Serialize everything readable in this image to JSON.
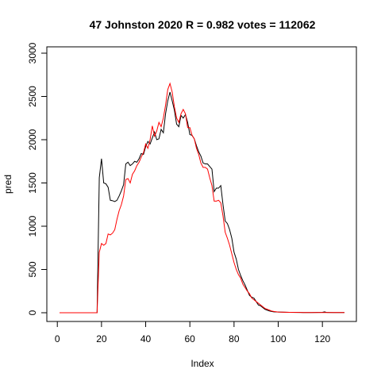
{
  "chart_data": {
    "type": "line",
    "title": "47 Johnston 2020 R = 0.982 votes = 112062",
    "xlabel": "Index",
    "ylabel": "pred",
    "xlim": [
      1,
      130
    ],
    "ylim": [
      0,
      3000
    ],
    "xticks": [
      0,
      20,
      40,
      60,
      80,
      100,
      120
    ],
    "yticks": [
      0,
      500,
      1000,
      1500,
      2000,
      2500,
      3000
    ],
    "grid": false,
    "legend": "none",
    "series": [
      {
        "color": "#000000",
        "points": [
          [
            1,
            0
          ],
          [
            18,
            0
          ],
          [
            19,
            1560
          ],
          [
            20,
            1780
          ],
          [
            21,
            1500
          ],
          [
            22,
            1490
          ],
          [
            23,
            1450
          ],
          [
            24,
            1300
          ],
          [
            25,
            1295
          ],
          [
            26,
            1285
          ],
          [
            27,
            1300
          ],
          [
            28,
            1350
          ],
          [
            29,
            1410
          ],
          [
            30,
            1480
          ],
          [
            31,
            1720
          ],
          [
            32,
            1740
          ],
          [
            33,
            1700
          ],
          [
            34,
            1720
          ],
          [
            35,
            1750
          ],
          [
            36,
            1740
          ],
          [
            37,
            1780
          ],
          [
            38,
            1840
          ],
          [
            39,
            1830
          ],
          [
            40,
            1920
          ],
          [
            41,
            1980
          ],
          [
            42,
            1950
          ],
          [
            43,
            2020
          ],
          [
            44,
            2090
          ],
          [
            45,
            2000
          ],
          [
            46,
            2010
          ],
          [
            47,
            2120
          ],
          [
            48,
            2080
          ],
          [
            49,
            2300
          ],
          [
            50,
            2450
          ],
          [
            51,
            2550
          ],
          [
            52,
            2450
          ],
          [
            53,
            2340
          ],
          [
            54,
            2180
          ],
          [
            55,
            2150
          ],
          [
            56,
            2280
          ],
          [
            57,
            2250
          ],
          [
            58,
            2290
          ],
          [
            59,
            2200
          ],
          [
            60,
            2060
          ],
          [
            61,
            2050
          ],
          [
            62,
            2010
          ],
          [
            63,
            1930
          ],
          [
            64,
            1860
          ],
          [
            65,
            1810
          ],
          [
            66,
            1730
          ],
          [
            67,
            1720
          ],
          [
            68,
            1720
          ],
          [
            69,
            1690
          ],
          [
            70,
            1660
          ],
          [
            71,
            1400
          ],
          [
            72,
            1440
          ],
          [
            73,
            1440
          ],
          [
            74,
            1470
          ],
          [
            75,
            1250
          ],
          [
            76,
            1060
          ],
          [
            77,
            1030
          ],
          [
            78,
            960
          ],
          [
            79,
            860
          ],
          [
            80,
            700
          ],
          [
            81,
            620
          ],
          [
            82,
            500
          ],
          [
            83,
            430
          ],
          [
            84,
            370
          ],
          [
            85,
            320
          ],
          [
            86,
            260
          ],
          [
            87,
            200
          ],
          [
            88,
            180
          ],
          [
            89,
            170
          ],
          [
            90,
            130
          ],
          [
            91,
            90
          ],
          [
            92,
            80
          ],
          [
            93,
            60
          ],
          [
            94,
            40
          ],
          [
            95,
            30
          ],
          [
            96,
            20
          ],
          [
            97,
            15
          ],
          [
            98,
            10
          ],
          [
            100,
            8
          ],
          [
            105,
            5
          ],
          [
            110,
            3
          ],
          [
            115,
            2
          ],
          [
            120,
            5
          ],
          [
            121,
            10
          ],
          [
            122,
            3
          ],
          [
            125,
            2
          ],
          [
            130,
            2
          ]
        ]
      },
      {
        "color": "#ff0000",
        "points": [
          [
            1,
            0
          ],
          [
            18,
            0
          ],
          [
            19,
            700
          ],
          [
            20,
            800
          ],
          [
            21,
            780
          ],
          [
            22,
            800
          ],
          [
            23,
            910
          ],
          [
            24,
            900
          ],
          [
            25,
            920
          ],
          [
            26,
            960
          ],
          [
            27,
            1080
          ],
          [
            28,
            1180
          ],
          [
            29,
            1250
          ],
          [
            30,
            1350
          ],
          [
            31,
            1540
          ],
          [
            32,
            1550
          ],
          [
            33,
            1500
          ],
          [
            34,
            1600
          ],
          [
            35,
            1640
          ],
          [
            36,
            1700
          ],
          [
            37,
            1740
          ],
          [
            38,
            1800
          ],
          [
            39,
            1850
          ],
          [
            40,
            1950
          ],
          [
            41,
            1900
          ],
          [
            42,
            2000
          ],
          [
            43,
            2160
          ],
          [
            44,
            2040
          ],
          [
            45,
            2100
          ],
          [
            46,
            2200
          ],
          [
            47,
            2150
          ],
          [
            48,
            2250
          ],
          [
            49,
            2400
          ],
          [
            50,
            2580
          ],
          [
            51,
            2650
          ],
          [
            52,
            2550
          ],
          [
            53,
            2380
          ],
          [
            54,
            2250
          ],
          [
            55,
            2200
          ],
          [
            56,
            2300
          ],
          [
            57,
            2350
          ],
          [
            58,
            2300
          ],
          [
            59,
            2140
          ],
          [
            60,
            2140
          ],
          [
            61,
            2050
          ],
          [
            62,
            2010
          ],
          [
            63,
            1900
          ],
          [
            64,
            1830
          ],
          [
            65,
            1730
          ],
          [
            66,
            1680
          ],
          [
            67,
            1680
          ],
          [
            68,
            1660
          ],
          [
            69,
            1560
          ],
          [
            70,
            1470
          ],
          [
            71,
            1290
          ],
          [
            72,
            1290
          ],
          [
            73,
            1300
          ],
          [
            74,
            1270
          ],
          [
            75,
            1120
          ],
          [
            76,
            930
          ],
          [
            77,
            860
          ],
          [
            78,
            780
          ],
          [
            79,
            680
          ],
          [
            80,
            580
          ],
          [
            81,
            500
          ],
          [
            82,
            440
          ],
          [
            83,
            400
          ],
          [
            84,
            330
          ],
          [
            85,
            290
          ],
          [
            86,
            250
          ],
          [
            87,
            220
          ],
          [
            88,
            170
          ],
          [
            89,
            150
          ],
          [
            90,
            130
          ],
          [
            91,
            110
          ],
          [
            92,
            90
          ],
          [
            93,
            70
          ],
          [
            94,
            50
          ],
          [
            95,
            40
          ],
          [
            96,
            30
          ],
          [
            97,
            20
          ],
          [
            98,
            15
          ],
          [
            100,
            8
          ],
          [
            105,
            5
          ],
          [
            110,
            3
          ],
          [
            115,
            2
          ],
          [
            120,
            2
          ],
          [
            125,
            2
          ],
          [
            130,
            2
          ]
        ]
      }
    ]
  }
}
